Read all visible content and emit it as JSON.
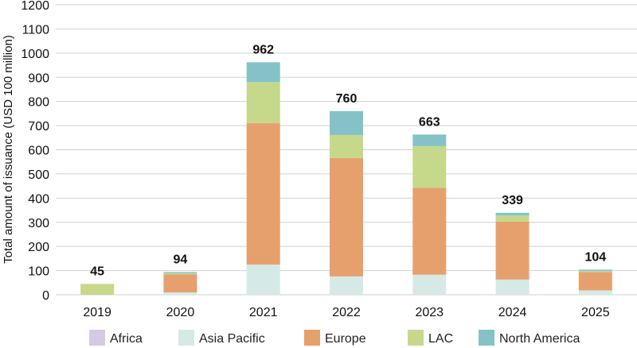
{
  "chart_data": {
    "type": "bar",
    "stacked": true,
    "title": "",
    "xlabel": "",
    "ylabel": "Total amount of issuance (USD 100 million)",
    "ylim": [
      0,
      1200
    ],
    "yticks": [
      0,
      100,
      200,
      300,
      400,
      500,
      600,
      700,
      800,
      900,
      1000,
      1100,
      1200
    ],
    "grid": true,
    "legend": "bottom",
    "categories": [
      "2019",
      "2020",
      "2021",
      "2022",
      "2023",
      "2024",
      "2025"
    ],
    "totals": [
      45,
      94,
      962,
      760,
      663,
      339,
      104
    ],
    "series": [
      {
        "name": "Africa",
        "color": "#d4cae3",
        "values": [
          0,
          0,
          0,
          0,
          0,
          0,
          0
        ]
      },
      {
        "name": "Asia Pacific",
        "color": "#d5eae7",
        "values": [
          0,
          10,
          125,
          76,
          83,
          63,
          18
        ]
      },
      {
        "name": "Europe",
        "color": "#e6a06e",
        "values": [
          0,
          74,
          585,
          490,
          360,
          240,
          76
        ]
      },
      {
        "name": "LAC",
        "color": "#c6d98a",
        "values": [
          45,
          5,
          170,
          95,
          172,
          25,
          4
        ]
      },
      {
        "name": "North America",
        "color": "#85c2c8",
        "values": [
          0,
          5,
          82,
          99,
          48,
          11,
          6
        ]
      }
    ]
  }
}
